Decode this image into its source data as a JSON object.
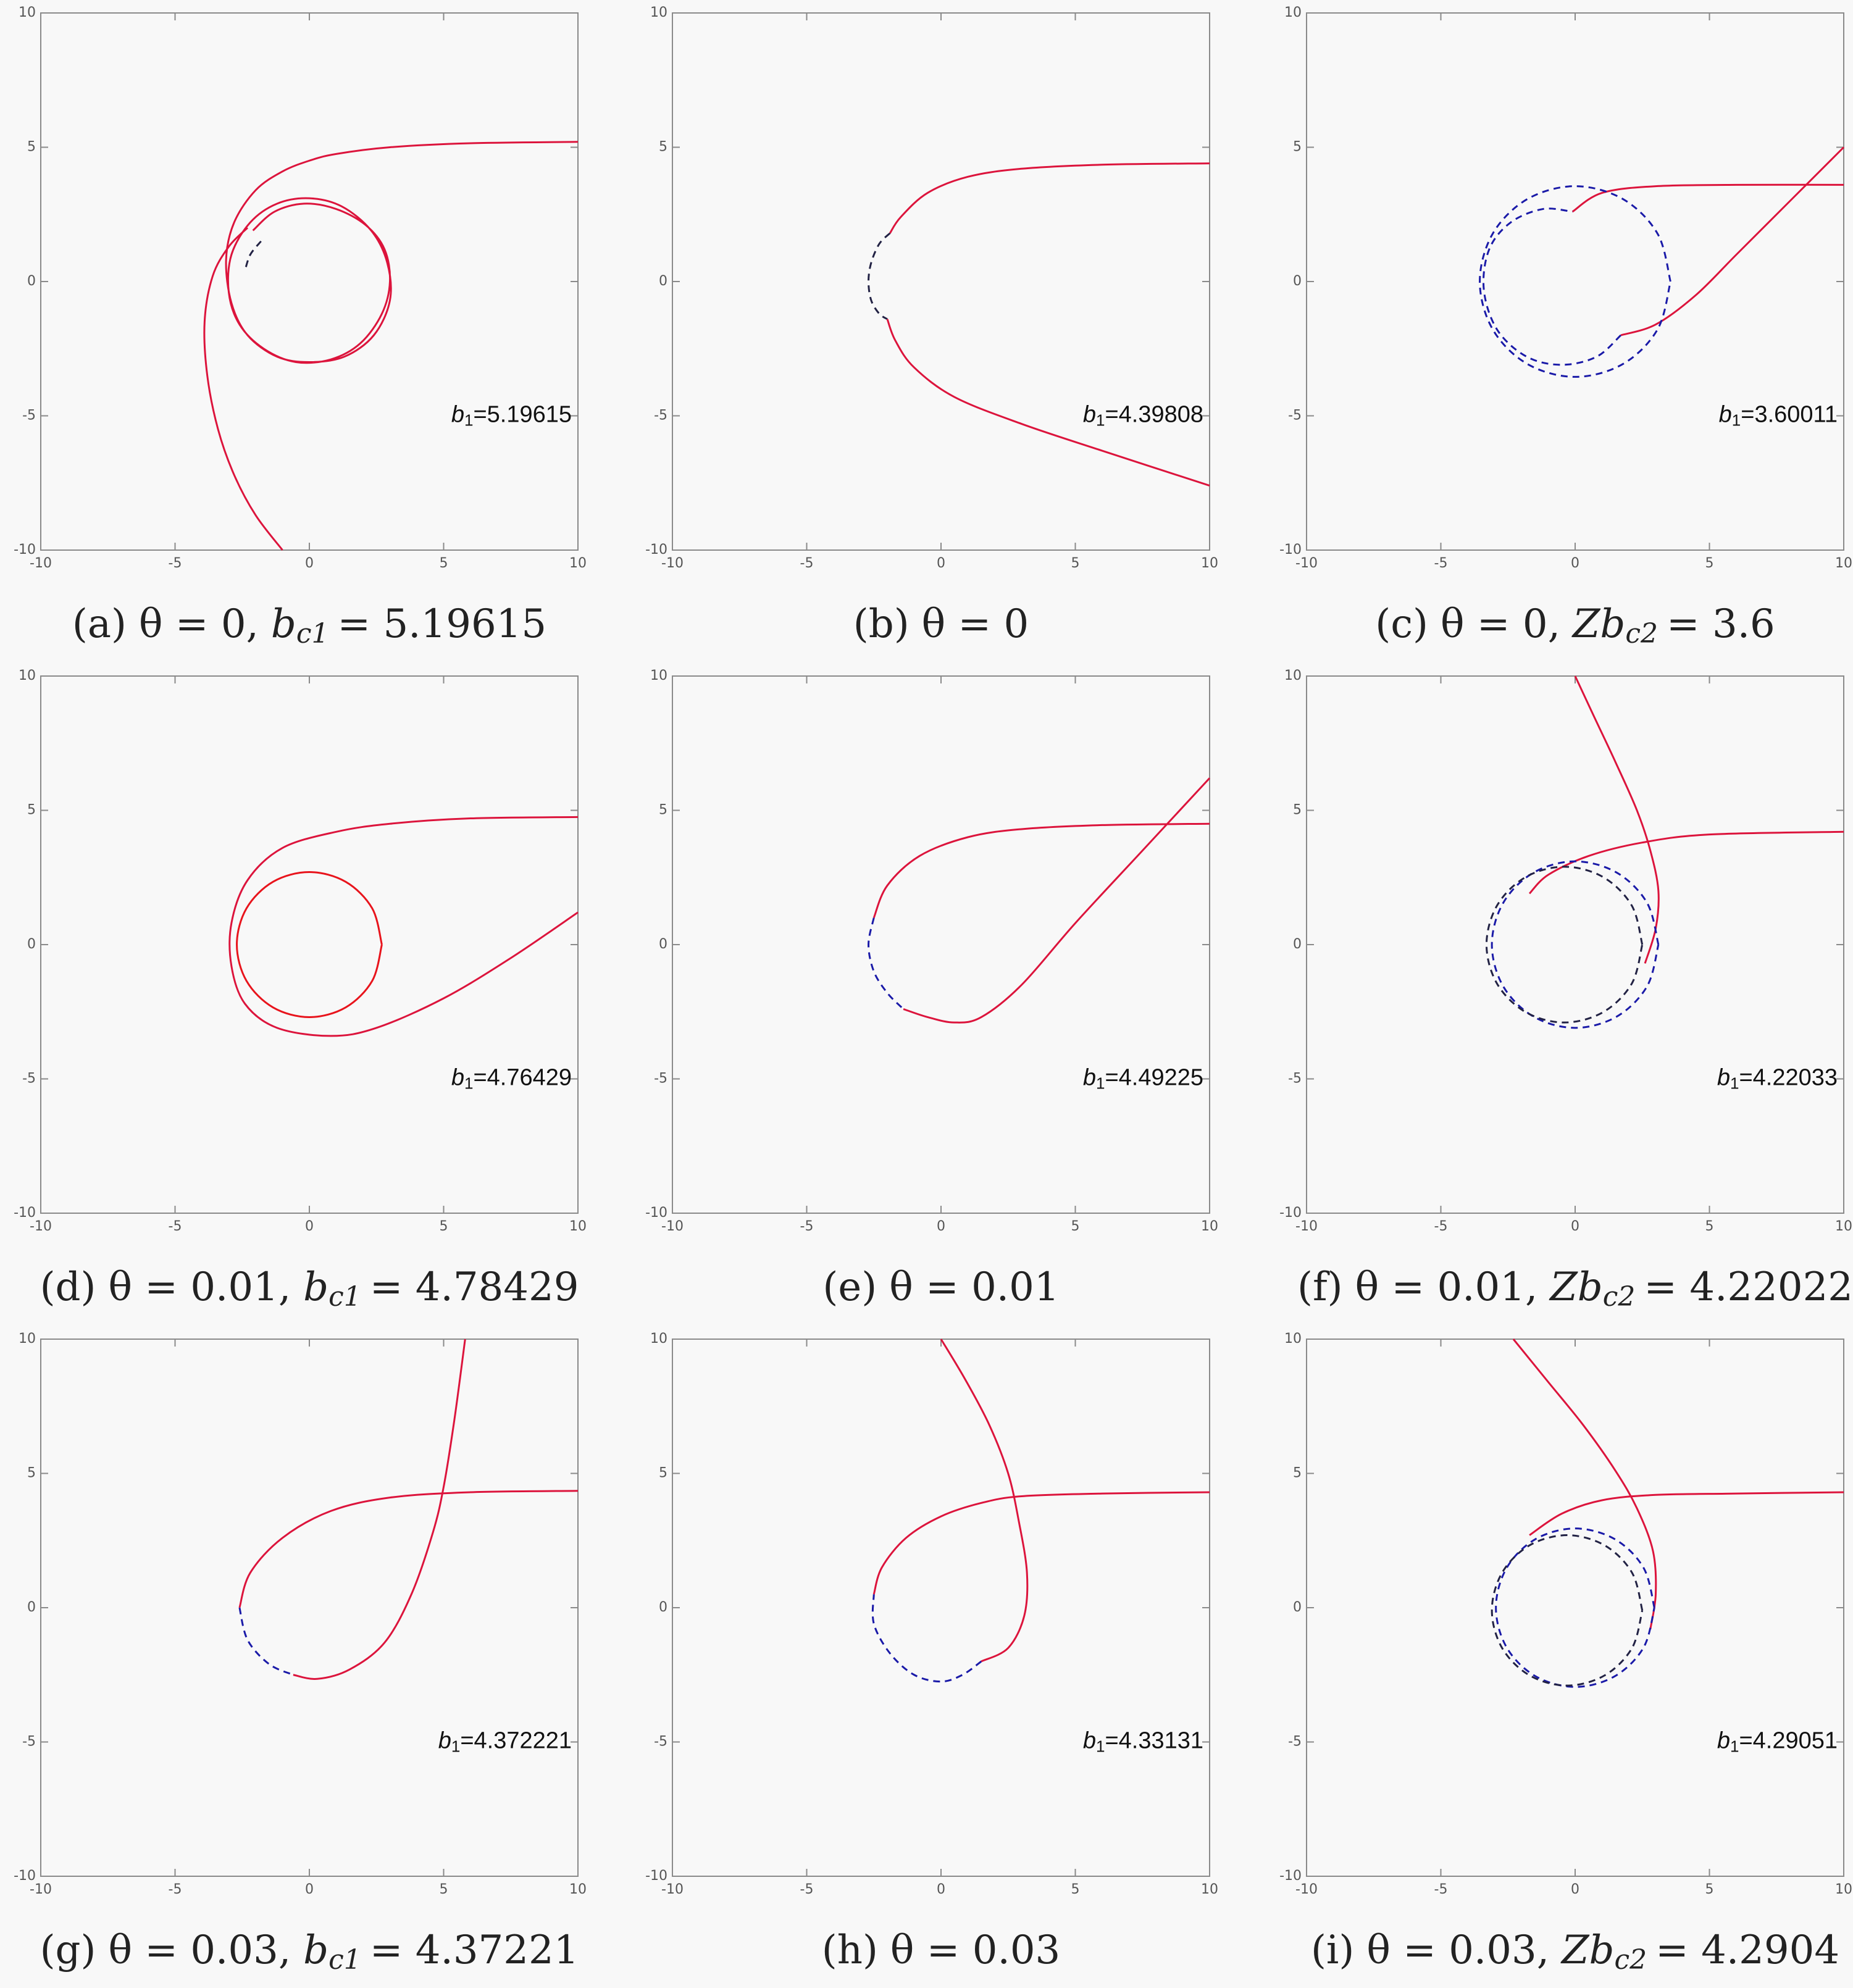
{
  "chart_data": [
    {
      "type": "line",
      "xlim": [
        -10,
        10
      ],
      "ylim": [
        -10,
        10
      ],
      "xticks": [
        -10,
        -5,
        0,
        5,
        10
      ],
      "yticks": [
        -10,
        -5,
        0,
        5,
        10
      ],
      "annotation": {
        "symbol": "b",
        "sub": "1",
        "text": "=5.19615"
      },
      "caption": {
        "label": "(a)",
        "condition": "θ = 0,",
        "param": "b",
        "param_sub": "c1",
        "param_value": "= 5.19615"
      },
      "series": [
        {
          "color": "#dc143c",
          "dash": false,
          "x": [
            10,
            6,
            3,
            1,
            0,
            -1,
            -2,
            -2.8,
            -3.1,
            -2.9,
            -2.3,
            -1.2,
            0,
            1.3,
            2.4,
            3.0,
            2.9,
            2.3,
            1.2,
            0,
            -1.2,
            -2.2,
            -2.9,
            -3.0,
            -2.6,
            -1.7,
            -0.5,
            0.8,
            1.9,
            2.7,
            3.0,
            2.8,
            2.1,
            1.0,
            -0.2,
            -1.3,
            -2.1
          ],
          "values": [
            5.2,
            5.15,
            5.0,
            4.75,
            4.5,
            4.1,
            3.4,
            2.2,
            0.8,
            -0.8,
            -2.0,
            -2.8,
            -3.0,
            -2.8,
            -2.0,
            -0.7,
            0.7,
            1.9,
            2.8,
            3.1,
            2.9,
            2.2,
            1.0,
            -0.4,
            -1.6,
            -2.5,
            -3.0,
            -2.9,
            -2.3,
            -1.2,
            0,
            1.2,
            2.1,
            2.7,
            2.9,
            2.6,
            1.9
          ]
        },
        {
          "color": "#dc143c",
          "dash": false,
          "x": [
            -2.3,
            -3.0,
            -3.6,
            -3.9,
            -3.8,
            -3.4,
            -2.8,
            -2.0,
            -1.0
          ],
          "values": [
            2.0,
            1.3,
            0.2,
            -1.5,
            -3.5,
            -5.5,
            -7.2,
            -8.7,
            -10
          ]
        },
        {
          "color": "#222244",
          "dash": true,
          "x": [
            -1.8,
            -2.2,
            -2.4
          ],
          "values": [
            1.5,
            1.0,
            0.4
          ]
        }
      ]
    },
    {
      "type": "line",
      "xlim": [
        -10,
        10
      ],
      "ylim": [
        -10,
        10
      ],
      "xticks": [
        -10,
        -5,
        0,
        5,
        10
      ],
      "yticks": [
        -10,
        -5,
        0,
        5,
        10
      ],
      "annotation": {
        "symbol": "b",
        "sub": "1",
        "text": "=4.39808"
      },
      "caption": {
        "label": "(b)",
        "condition": "θ = 0"
      },
      "series": [
        {
          "color": "#dc143c",
          "dash": false,
          "x": [
            10,
            6,
            3,
            1,
            -0.5,
            -1.5,
            -1.9
          ],
          "values": [
            4.4,
            4.35,
            4.2,
            3.9,
            3.3,
            2.4,
            1.8
          ]
        },
        {
          "color": "#222244",
          "dash": true,
          "x": [
            -1.9,
            -2.3,
            -2.6,
            -2.7,
            -2.6,
            -2.3,
            -2.0
          ],
          "values": [
            1.8,
            1.4,
            0.7,
            0,
            -0.7,
            -1.2,
            -1.4
          ]
        },
        {
          "color": "#dc143c",
          "dash": false,
          "x": [
            -2.0,
            -1.7,
            -1.0,
            0.5,
            3,
            6,
            10
          ],
          "values": [
            -1.4,
            -2.2,
            -3.2,
            -4.3,
            -5.3,
            -6.3,
            -7.6
          ]
        }
      ]
    },
    {
      "type": "line",
      "xlim": [
        -10,
        10
      ],
      "ylim": [
        -10,
        10
      ],
      "xticks": [
        -10,
        -5,
        0,
        5,
        10
      ],
      "yticks": [
        -10,
        -5,
        0,
        5,
        10
      ],
      "annotation": {
        "symbol": "b",
        "sub": "1",
        "text": "=3.60011"
      },
      "caption": {
        "label": "(c)",
        "condition": "θ = 0,",
        "param": "Zb",
        "param_sub": "c2",
        "param_value": "= 3.6"
      },
      "series": [
        {
          "color": "#dc143c",
          "dash": false,
          "x": [
            -0.1,
            1,
            3,
            6,
            10
          ],
          "values": [
            2.6,
            3.3,
            3.55,
            3.6,
            3.6
          ]
        },
        {
          "color": "#dc143c",
          "dash": false,
          "x": [
            1.7,
            3,
            4.5,
            6,
            8,
            10
          ],
          "values": [
            -2,
            -1.6,
            -0.5,
            1,
            3,
            5
          ]
        },
        {
          "color": "#1a1aa8",
          "dash": true,
          "x": [
            1.7,
            0.8,
            -0.5,
            -1.8,
            -2.9,
            -3.4,
            -3.2,
            -2.4,
            -1.2,
            -0.1
          ],
          "values": [
            -2,
            -2.8,
            -3.1,
            -2.8,
            -1.8,
            -0.3,
            1.2,
            2.2,
            2.7,
            2.6
          ]
        },
        {
          "color": "#1a1aa8",
          "dash": true,
          "x": [
            3.55,
            3.07,
            1.78,
            0,
            -1.78,
            -3.07,
            -3.55,
            -3.07,
            -1.78,
            0,
            1.78,
            3.07,
            3.55
          ],
          "values": [
            0,
            1.78,
            3.07,
            3.55,
            3.07,
            1.78,
            0,
            -1.78,
            -3.07,
            -3.55,
            -3.07,
            -1.78,
            0
          ]
        }
      ]
    },
    {
      "type": "line",
      "xlim": [
        -10,
        10
      ],
      "ylim": [
        -10,
        10
      ],
      "xticks": [
        -10,
        -5,
        0,
        5,
        10
      ],
      "yticks": [
        -10,
        -5,
        0,
        5,
        10
      ],
      "annotation": {
        "symbol": "b",
        "sub": "1",
        "text": "=4.76429"
      },
      "caption": {
        "label": "(d)",
        "condition": "θ = 0.01,",
        "param": "b",
        "param_sub": "c1",
        "param_value": "= 4.78429"
      },
      "series": [
        {
          "color": "#dc143c",
          "dash": false,
          "x": [
            10,
            6,
            3,
            1,
            -1,
            -2.3,
            -2.9,
            -2.9,
            -2.4,
            -1.2,
            0.8,
            2.5,
            5,
            7.5,
            10
          ],
          "values": [
            4.75,
            4.7,
            4.5,
            4.2,
            3.6,
            2.4,
            0.8,
            -0.8,
            -2.2,
            -3.1,
            -3.4,
            -3.1,
            -2,
            -0.5,
            1.2
          ]
        },
        {
          "color": "#e8141c",
          "dash": false,
          "x": [
            2.7,
            2.34,
            1.35,
            0,
            -1.35,
            -2.34,
            -2.7,
            -2.34,
            -1.35,
            0,
            1.35,
            2.34,
            2.7
          ],
          "values": [
            0,
            1.35,
            2.34,
            2.7,
            2.34,
            1.35,
            0,
            -1.35,
            -2.34,
            -2.7,
            -2.34,
            -1.35,
            0
          ]
        }
      ]
    },
    {
      "type": "line",
      "xlim": [
        -10,
        10
      ],
      "ylim": [
        -10,
        10
      ],
      "xticks": [
        -10,
        -5,
        0,
        5,
        10
      ],
      "yticks": [
        -10,
        -5,
        0,
        5,
        10
      ],
      "annotation": {
        "symbol": "b",
        "sub": "1",
        "text": "=4.49225"
      },
      "caption": {
        "label": "(e)",
        "condition": "θ = 0.01"
      },
      "series": [
        {
          "color": "#dc143c",
          "dash": false,
          "x": [
            10,
            6,
            3,
            1,
            -0.8,
            -2.0,
            -2.5
          ],
          "values": [
            4.5,
            4.45,
            4.3,
            4.0,
            3.3,
            2.2,
            1.0
          ]
        },
        {
          "color": "#1a1aa8",
          "dash": true,
          "x": [
            -2.5,
            -2.7,
            -2.5,
            -2.0,
            -1.4
          ],
          "values": [
            1.0,
            0,
            -1.0,
            -1.8,
            -2.4
          ]
        },
        {
          "color": "#dc143c",
          "dash": false,
          "x": [
            -1.4,
            -0.5,
            0.5,
            1.5,
            3,
            5,
            7.5,
            10
          ],
          "values": [
            -2.4,
            -2.7,
            -2.9,
            -2.7,
            -1.5,
            0.8,
            3.5,
            6.2
          ]
        }
      ]
    },
    {
      "type": "line",
      "xlim": [
        -10,
        10
      ],
      "ylim": [
        -10,
        10
      ],
      "xticks": [
        -10,
        -5,
        0,
        5,
        10
      ],
      "yticks": [
        -10,
        -5,
        0,
        5,
        10
      ],
      "annotation": {
        "symbol": "b",
        "sub": "1",
        "text": "=4.22033"
      },
      "caption": {
        "label": "(f)",
        "condition": "θ = 0.01,",
        "param": "Zb",
        "param_sub": "c2",
        "param_value": "= 4.22022"
      },
      "series": [
        {
          "color": "#dc143c",
          "dash": false,
          "x": [
            0,
            0.7,
            1.5,
            2.3,
            2.8,
            3.1,
            3.0,
            2.6
          ],
          "values": [
            10,
            8.5,
            6.8,
            5,
            3.5,
            2,
            0.6,
            -0.7
          ]
        },
        {
          "color": "#dc143c",
          "dash": false,
          "x": [
            -1.7,
            -1,
            0.5,
            2.5,
            5,
            10
          ],
          "values": [
            1.9,
            2.6,
            3.3,
            3.8,
            4.1,
            4.2
          ]
        },
        {
          "color": "#1a1aa8",
          "dash": true,
          "x": [
            3.1,
            2.68,
            1.55,
            0,
            -1.55,
            -2.68,
            -3.1,
            -2.68,
            -1.55,
            0,
            1.55,
            2.68,
            3.1
          ],
          "values": [
            0,
            1.55,
            2.68,
            3.1,
            2.68,
            1.55,
            0,
            -1.55,
            -2.68,
            -3.1,
            -2.68,
            -1.55,
            0
          ]
        },
        {
          "color": "#222244",
          "dash": true,
          "x": [
            2.5,
            2.11,
            1.05,
            -0.4,
            -1.85,
            -2.91,
            -3.3,
            -2.91,
            -1.85,
            -0.4,
            1.05,
            2.11,
            2.5
          ],
          "values": [
            0,
            1.45,
            2.51,
            2.9,
            2.51,
            1.45,
            0,
            -1.45,
            -2.51,
            -2.9,
            -2.51,
            -1.45,
            0
          ]
        }
      ]
    },
    {
      "type": "line",
      "xlim": [
        -10,
        10
      ],
      "ylim": [
        -10,
        10
      ],
      "xticks": [
        -10,
        -5,
        0,
        5,
        10
      ],
      "yticks": [
        -10,
        -5,
        0,
        5,
        10
      ],
      "annotation": {
        "symbol": "b",
        "sub": "1",
        "text": "=4.372221"
      },
      "caption": {
        "label": "(g)",
        "condition": "θ = 0.03,",
        "param": "b",
        "param_sub": "c1",
        "param_value": "= 4.37221"
      },
      "series": [
        {
          "color": "#dc143c",
          "dash": false,
          "x": [
            10,
            6,
            3,
            0.8,
            -1,
            -2.2,
            -2.6
          ],
          "values": [
            4.35,
            4.3,
            4.1,
            3.6,
            2.6,
            1.3,
            0
          ]
        },
        {
          "color": "#1a1aa8",
          "dash": true,
          "x": [
            -2.6,
            -2.3,
            -1.5,
            -0.6
          ],
          "values": [
            0,
            -1.2,
            -2.1,
            -2.5
          ]
        },
        {
          "color": "#dc143c",
          "dash": false,
          "x": [
            -0.6,
            0.3,
            1.5,
            2.8,
            3.8,
            4.6,
            5.0,
            5.4,
            5.8
          ],
          "values": [
            -2.5,
            -2.65,
            -2.3,
            -1.3,
            0.5,
            2.8,
            4.5,
            7,
            10
          ]
        }
      ]
    },
    {
      "type": "line",
      "xlim": [
        -10,
        10
      ],
      "ylim": [
        -10,
        10
      ],
      "xticks": [
        -10,
        -5,
        0,
        5,
        10
      ],
      "yticks": [
        -10,
        -5,
        0,
        5,
        10
      ],
      "annotation": {
        "symbol": "b",
        "sub": "1",
        "text": "=4.33131"
      },
      "caption": {
        "label": "(h)",
        "condition": "θ = 0.03"
      },
      "series": [
        {
          "color": "#dc143c",
          "dash": false,
          "x": [
            0,
            0.9,
            1.8,
            2.5,
            2.9,
            3.2,
            3.1,
            2.5,
            1.5
          ],
          "values": [
            10,
            8.5,
            6.8,
            5,
            3.2,
            1.3,
            -0.3,
            -1.5,
            -2.0
          ]
        },
        {
          "color": "#1a1aa8",
          "dash": true,
          "x": [
            1.5,
            0.8,
            0,
            -1,
            -1.9,
            -2.5,
            -2.5
          ],
          "values": [
            -2.0,
            -2.5,
            -2.75,
            -2.5,
            -1.7,
            -0.6,
            0.5
          ]
        },
        {
          "color": "#dc143c",
          "dash": false,
          "x": [
            -2.5,
            -2.2,
            -1.3,
            0,
            1.5,
            3,
            6,
            10
          ],
          "values": [
            0.5,
            1.5,
            2.6,
            3.4,
            3.9,
            4.15,
            4.25,
            4.3
          ]
        }
      ]
    },
    {
      "type": "line",
      "xlim": [
        -10,
        10
      ],
      "ylim": [
        -10,
        10
      ],
      "xticks": [
        -10,
        -5,
        0,
        5,
        10
      ],
      "yticks": [
        -10,
        -5,
        0,
        5,
        10
      ],
      "annotation": {
        "symbol": "b",
        "sub": "1",
        "text": "=4.29051"
      },
      "caption": {
        "label": "(i)",
        "condition": "θ = 0.03,",
        "param": "Zb",
        "param_sub": "c2",
        "param_value": "= 4.2904"
      },
      "series": [
        {
          "color": "#dc143c",
          "dash": false,
          "x": [
            -2.3,
            -1,
            0.3,
            1.5,
            2.3,
            2.9,
            3.0,
            2.8
          ],
          "values": [
            10,
            8.4,
            6.8,
            5.1,
            3.7,
            2.1,
            0.5,
            -0.8
          ]
        },
        {
          "color": "#dc143c",
          "dash": false,
          "x": [
            -1.7,
            -0.5,
            1,
            3,
            6,
            10
          ],
          "values": [
            2.7,
            3.5,
            4,
            4.2,
            4.25,
            4.3
          ]
        },
        {
          "color": "#1a1aa8",
          "dash": true,
          "x": [
            2.95,
            2.55,
            1.48,
            0,
            -1.48,
            -2.55,
            -2.95,
            -2.55,
            -1.48,
            0,
            1.48,
            2.55,
            2.95
          ],
          "values": [
            0,
            1.48,
            2.55,
            2.95,
            2.55,
            1.48,
            0,
            -1.48,
            -2.55,
            -2.95,
            -2.55,
            -1.48,
            0
          ]
        },
        {
          "color": "#222244",
          "dash": true,
          "x": [
            2.5,
            2.12,
            1.1,
            -0.3,
            -1.7,
            -2.72,
            -3.1,
            -2.72,
            -1.7,
            -0.3,
            1.1,
            2.12,
            2.5
          ],
          "values": [
            -0.1,
            1.3,
            2.32,
            2.7,
            2.32,
            1.3,
            -0.1,
            -1.5,
            -2.52,
            -2.9,
            -2.52,
            -1.5,
            -0.1
          ]
        }
      ]
    }
  ]
}
